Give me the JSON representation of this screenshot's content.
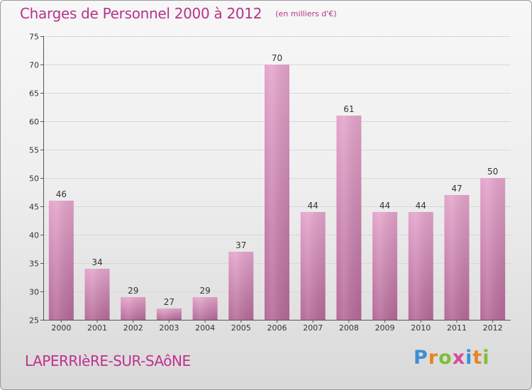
{
  "header": {
    "title": "Charges de Personnel 2000 à 2012",
    "subtitle": "(en milliers d'€)"
  },
  "footer": {
    "commune": "LAPERRIèRE-SUR-SAôNE",
    "logo_letters": [
      "P",
      "r",
      "o",
      "x",
      "i",
      "t",
      "i"
    ],
    "logo_colors": [
      "#3a8fd6",
      "#e8822a",
      "#7cbf3a",
      "#d64a9a",
      "#3a8fd6",
      "#e8822a",
      "#7cbf3a"
    ]
  },
  "chart_data": {
    "type": "bar",
    "categories": [
      "2000",
      "2001",
      "2002",
      "2003",
      "2004",
      "2005",
      "2006",
      "2007",
      "2008",
      "2009",
      "2010",
      "2011",
      "2012"
    ],
    "values": [
      46,
      34,
      29,
      27,
      29,
      37,
      70,
      44,
      61,
      44,
      44,
      47,
      50
    ],
    "ylim": [
      25,
      75
    ],
    "yticks": [
      25,
      30,
      35,
      40,
      45,
      50,
      55,
      60,
      65,
      70,
      75
    ],
    "grid": true,
    "bar_color": "#d987b8",
    "grid_color": "#d8d8d8",
    "axis_color": "#555555"
  }
}
